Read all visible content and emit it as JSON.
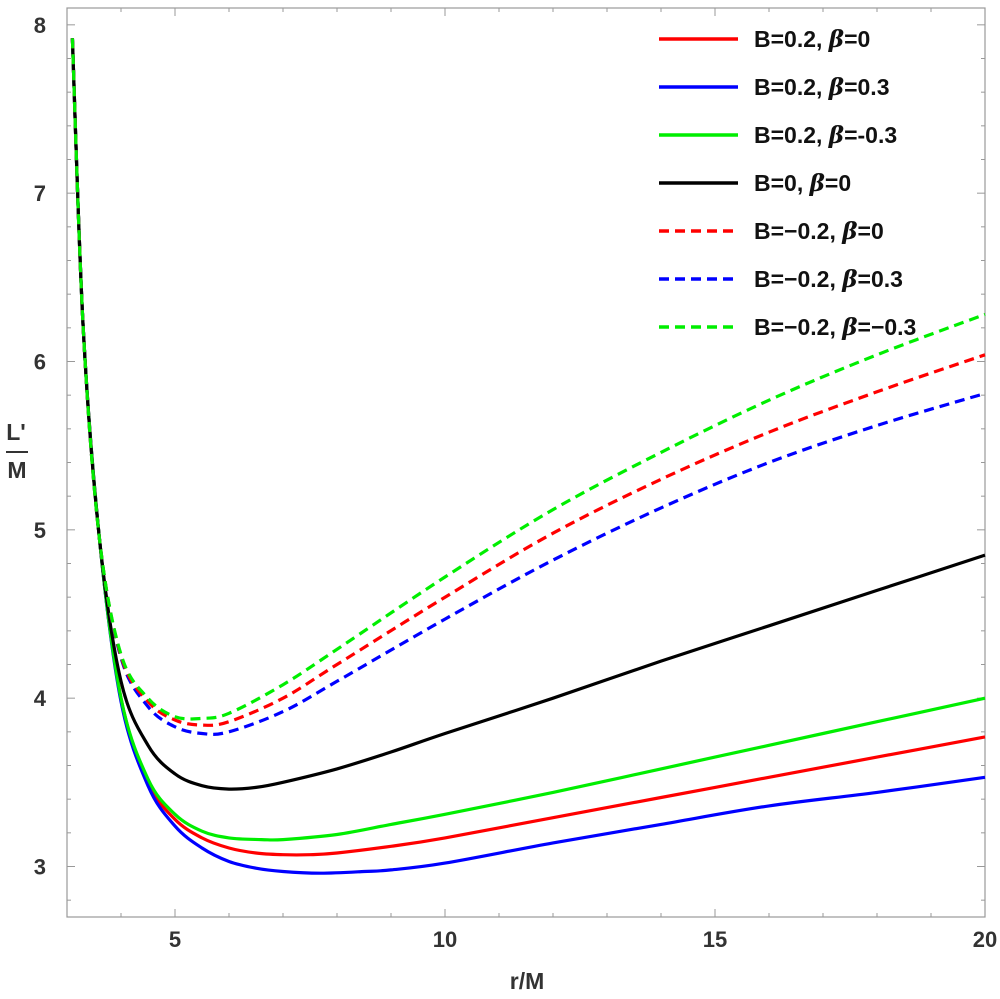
{
  "chart_data": {
    "type": "line",
    "title": "",
    "xlabel": "r/M",
    "ylabel": {
      "numerator": "L'",
      "denominator": "M"
    },
    "xlim": [
      3.0,
      20.0
    ],
    "ylim": [
      2.7,
      8.1
    ],
    "xticks": [
      5,
      10,
      15,
      20
    ],
    "yticks": [
      3,
      4,
      5,
      6,
      7,
      8
    ],
    "xtick_labels": [
      "5",
      "10",
      "15",
      "20"
    ],
    "ytick_labels": [
      "3",
      "4",
      "5",
      "6",
      "7",
      "8"
    ],
    "grid": false,
    "legend_position": "top-right",
    "series": [
      {
        "name": "B=0.2, β=0",
        "legend": {
          "main": "B=0.2, ",
          "beta": "β",
          "value": "=0"
        },
        "color": "#ff0000",
        "style": "solid",
        "x": [
          3.1,
          3.3,
          3.6,
          4.0,
          4.5,
          5.0,
          5.5,
          6.0,
          6.5,
          7.0,
          7.5,
          8.0,
          9.0,
          10.0,
          12.0,
          14.0,
          16.0,
          18.0,
          20.0
        ],
        "y": [
          7.92,
          6.2,
          4.95,
          4.0,
          3.5,
          3.28,
          3.17,
          3.11,
          3.08,
          3.07,
          3.07,
          3.08,
          3.12,
          3.17,
          3.29,
          3.41,
          3.53,
          3.65,
          3.77
        ]
      },
      {
        "name": "B=0.2, β=0.3",
        "legend": {
          "main": "B=0.2, ",
          "beta": "β",
          "value": "=0.3"
        },
        "color": "#0000ff",
        "style": "solid",
        "x": [
          3.1,
          3.3,
          3.6,
          4.0,
          4.5,
          5.0,
          5.5,
          6.0,
          6.5,
          7.0,
          7.7,
          8.5,
          9.0,
          10.0,
          12.0,
          14.0,
          16.0,
          18.0,
          20.0
        ],
        "y": [
          7.92,
          6.2,
          4.95,
          3.98,
          3.48,
          3.24,
          3.11,
          3.03,
          2.99,
          2.97,
          2.96,
          2.97,
          2.98,
          3.02,
          3.14,
          3.25,
          3.36,
          3.44,
          3.53
        ]
      },
      {
        "name": "B=0.2, β=-0.3",
        "legend": {
          "main": "B=0.2, ",
          "beta": "β",
          "value": "=-0.3"
        },
        "color": "#00ee00",
        "style": "solid",
        "x": [
          3.1,
          3.3,
          3.6,
          4.0,
          4.5,
          5.0,
          5.5,
          6.0,
          6.6,
          7.0,
          8.0,
          9.0,
          10.0,
          12.0,
          14.0,
          16.0,
          18.0,
          20.0
        ],
        "y": [
          7.92,
          6.2,
          4.95,
          4.0,
          3.52,
          3.31,
          3.21,
          3.17,
          3.16,
          3.16,
          3.19,
          3.25,
          3.31,
          3.44,
          3.58,
          3.72,
          3.86,
          4.0
        ]
      },
      {
        "name": "B=0, β=0",
        "legend": {
          "main": "B=0, ",
          "beta": "β",
          "value": "=0"
        },
        "color": "#000000",
        "style": "solid",
        "x": [
          3.1,
          3.3,
          3.6,
          4.0,
          4.5,
          5.0,
          5.5,
          6.0,
          6.5,
          7.0,
          8.0,
          9.0,
          10.0,
          12.0,
          14.0,
          16.0,
          18.0,
          20.0
        ],
        "y": [
          7.92,
          6.2,
          4.95,
          4.1,
          3.72,
          3.55,
          3.48,
          3.46,
          3.47,
          3.5,
          3.58,
          3.68,
          3.79,
          4.0,
          4.22,
          4.43,
          4.64,
          4.85
        ]
      },
      {
        "name": "B=-0.2, β=0",
        "legend": {
          "main": "B=−0.2, ",
          "beta": "β",
          "value": "=0"
        },
        "color": "#ff0000",
        "style": "dashed",
        "x": [
          3.1,
          3.3,
          3.6,
          4.0,
          4.5,
          5.0,
          5.5,
          6.0,
          7.0,
          8.0,
          10.0,
          12.0,
          14.0,
          16.0,
          18.0,
          20.0
        ],
        "y": [
          7.92,
          6.2,
          4.95,
          4.25,
          3.98,
          3.87,
          3.84,
          3.86,
          4.0,
          4.2,
          4.6,
          4.98,
          5.3,
          5.58,
          5.82,
          6.04
        ]
      },
      {
        "name": "B=-0.2, β=0.3",
        "legend": {
          "main": "B=−0.2, ",
          "beta": "β",
          "value": "=0.3"
        },
        "color": "#0000ff",
        "style": "dashed",
        "x": [
          3.1,
          3.3,
          3.6,
          4.0,
          4.5,
          5.0,
          5.5,
          6.0,
          7.0,
          8.0,
          10.0,
          12.0,
          14.0,
          16.0,
          18.0,
          20.0
        ],
        "y": [
          7.92,
          6.2,
          4.95,
          4.24,
          3.95,
          3.83,
          3.79,
          3.8,
          3.92,
          4.1,
          4.47,
          4.82,
          5.13,
          5.4,
          5.62,
          5.81
        ]
      },
      {
        "name": "B=-0.2, β=-0.3",
        "legend": {
          "main": "B=−0.2, ",
          "beta": "β",
          "value": "=−0.3"
        },
        "color": "#00ee00",
        "style": "dashed",
        "x": [
          3.1,
          3.3,
          3.6,
          4.0,
          4.5,
          5.0,
          5.5,
          6.0,
          7.0,
          8.0,
          10.0,
          12.0,
          14.0,
          16.0,
          18.0,
          20.0
        ],
        "y": [
          7.92,
          6.2,
          4.95,
          4.26,
          4.0,
          3.89,
          3.88,
          3.91,
          4.08,
          4.29,
          4.72,
          5.12,
          5.46,
          5.77,
          6.04,
          6.28
        ]
      }
    ]
  }
}
